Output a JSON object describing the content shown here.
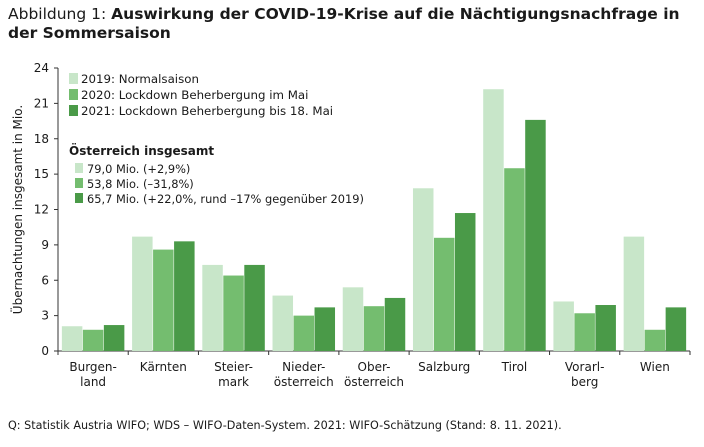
{
  "title": {
    "prefix": "Abbildung 1: ",
    "main": "Auswirkung der COVID-19-Krise auf die Nächtigungsnachfrage in der Sommersaison"
  },
  "source": "Q: Statistik Austria WIFO; WDS – WIFO-Daten-System. 2021: WIFO-Schätzung (Stand: 8. 11. 2021).",
  "legend": {
    "items": [
      {
        "label": "2019: Normalsaison",
        "color": "#c8e6c9"
      },
      {
        "label": "2020: Lockdown Beherbergung im Mai",
        "color": "#74bd6f"
      },
      {
        "label": "2021: Lockdown Beherbergung bis 18. Mai",
        "color": "#4a9a48"
      }
    ],
    "totals_heading": "Österreich insgesamt",
    "totals": [
      {
        "label": "79,0 Mio. (+2,9%)",
        "color": "#c8e6c9"
      },
      {
        "label": "53,8 Mio. (–31,8%)",
        "color": "#74bd6f"
      },
      {
        "label": "65,7 Mio. (+22,0%,  rund –17% gegenüber 2019)",
        "color": "#4a9a48"
      }
    ]
  },
  "chart_data": {
    "type": "bar",
    "ylabel": "Übernachtungen insgesamt in Mio.",
    "ylim": [
      0,
      24
    ],
    "yticks": [
      0,
      3,
      6,
      9,
      12,
      15,
      18,
      21,
      24
    ],
    "grid": false,
    "legend_position": "top-left",
    "categories": [
      [
        "Burgen-",
        "land"
      ],
      [
        "Kärnten"
      ],
      [
        "Steier-",
        "mark"
      ],
      [
        "Nieder-",
        "österreich"
      ],
      [
        "Ober-",
        "österreich"
      ],
      [
        "Salzburg"
      ],
      [
        "Tirol"
      ],
      [
        "Vorarl-",
        "berg"
      ],
      [
        "Wien"
      ]
    ],
    "series": [
      {
        "name": "2019: Normalsaison",
        "color": "#c8e6c9",
        "values": [
          2.1,
          9.7,
          7.3,
          4.7,
          5.4,
          13.8,
          22.2,
          4.2,
          9.7
        ]
      },
      {
        "name": "2020: Lockdown Beherbergung im Mai",
        "color": "#74bd6f",
        "values": [
          1.8,
          8.6,
          6.4,
          3.0,
          3.8,
          9.6,
          15.5,
          3.2,
          1.8
        ]
      },
      {
        "name": "2021: Lockdown Beherbergung bis 18. Mai",
        "color": "#4a9a48",
        "values": [
          2.2,
          9.3,
          7.3,
          3.7,
          4.5,
          11.7,
          19.6,
          3.9,
          3.7
        ]
      }
    ]
  }
}
